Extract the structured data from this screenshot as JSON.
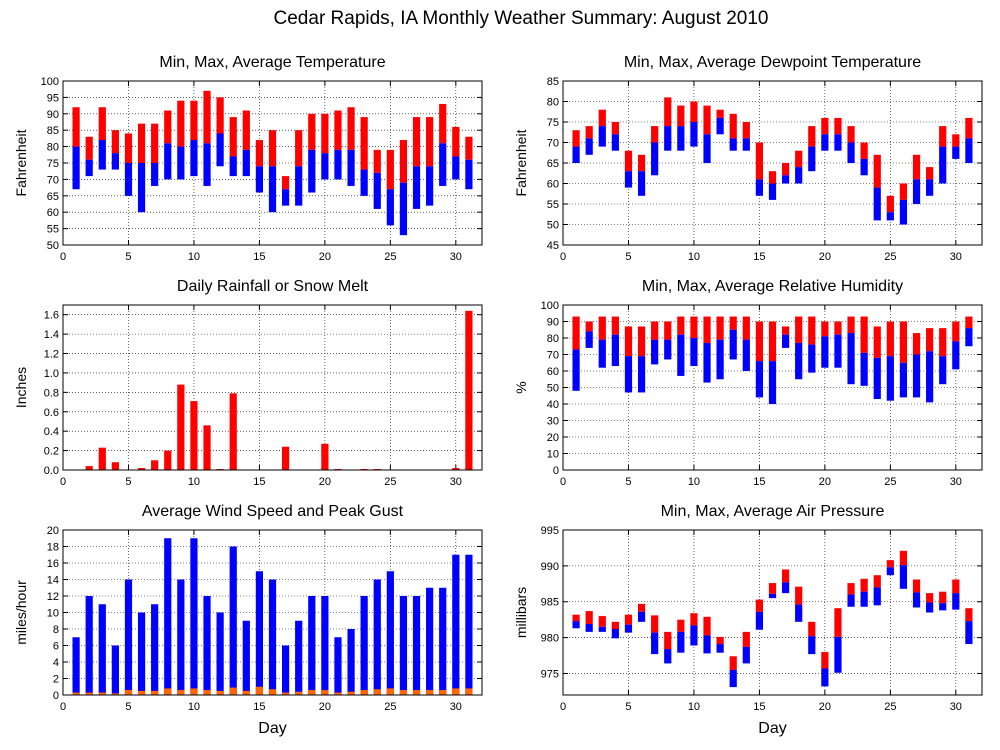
{
  "title": "Cedar Rapids, IA Monthly Weather Summary: August 2010",
  "colors": {
    "red": "#ff0000",
    "blue": "#0000ff",
    "orange": "#ff6600"
  },
  "chart_data": [
    {
      "id": "temp",
      "type": "bar",
      "title": "Min, Max, Average Temperature",
      "ylabel": "Fahrenheit",
      "xlabel": "",
      "ylim": [
        50,
        100
      ],
      "yticks": [
        50,
        55,
        60,
        65,
        70,
        75,
        80,
        85,
        90,
        95,
        100
      ],
      "xlim": [
        0,
        32
      ],
      "xticks": [
        0,
        5,
        10,
        15,
        20,
        25,
        30
      ],
      "grid": true,
      "x": [
        1,
        2,
        3,
        4,
        5,
        6,
        7,
        8,
        9,
        10,
        11,
        12,
        13,
        14,
        15,
        16,
        17,
        18,
        19,
        20,
        21,
        22,
        23,
        24,
        25,
        26,
        27,
        28,
        29,
        30,
        31
      ],
      "series": [
        {
          "key": "max",
          "values": [
            92,
            83,
            92,
            85,
            84,
            87,
            87,
            91,
            94,
            94,
            97,
            95,
            89,
            91,
            82,
            85,
            71,
            85,
            90,
            90,
            91,
            92,
            89,
            79,
            79,
            82,
            89,
            89,
            93,
            86,
            83
          ]
        },
        {
          "key": "avg",
          "values": [
            80,
            76,
            82,
            78,
            75,
            75,
            75,
            81,
            80,
            82,
            81,
            84,
            77,
            79,
            74,
            74,
            67,
            74,
            79,
            78,
            79,
            79,
            73,
            72,
            67,
            69,
            74,
            74,
            81,
            77,
            76
          ]
        },
        {
          "key": "min",
          "values": [
            67,
            71,
            73,
            73,
            65,
            60,
            68,
            70,
            70,
            71,
            68,
            74,
            71,
            71,
            66,
            60,
            62,
            62,
            66,
            70,
            70,
            68,
            65,
            61,
            56,
            53,
            61,
            62,
            68,
            70,
            67
          ]
        }
      ]
    },
    {
      "id": "dew",
      "type": "bar",
      "title": "Min, Max, Average Dewpoint Temperature",
      "ylabel": "Fahrenheit",
      "xlabel": "",
      "ylim": [
        45,
        85
      ],
      "yticks": [
        45,
        50,
        55,
        60,
        65,
        70,
        75,
        80,
        85
      ],
      "xlim": [
        0,
        32
      ],
      "xticks": [
        0,
        5,
        10,
        15,
        20,
        25,
        30
      ],
      "grid": true,
      "x": [
        1,
        2,
        3,
        4,
        5,
        6,
        7,
        8,
        9,
        10,
        11,
        12,
        13,
        14,
        15,
        16,
        17,
        18,
        19,
        20,
        21,
        22,
        23,
        24,
        25,
        26,
        27,
        28,
        29,
        30,
        31
      ],
      "series": [
        {
          "key": "max",
          "values": [
            73,
            74,
            78,
            75,
            68,
            67,
            74,
            81,
            79,
            80,
            79,
            78,
            77,
            75,
            70,
            63,
            65,
            68,
            74,
            76,
            76,
            74,
            70,
            67,
            57,
            60,
            67,
            64,
            74,
            72,
            76
          ]
        },
        {
          "key": "avg",
          "values": [
            69,
            71,
            74,
            72,
            63,
            63,
            70,
            74,
            74,
            75,
            72,
            76,
            71,
            71,
            61,
            60,
            62,
            64,
            69,
            72,
            72,
            70,
            66,
            59,
            53,
            56,
            61,
            61,
            69,
            69,
            71
          ]
        },
        {
          "key": "min",
          "values": [
            65,
            67,
            69,
            68,
            59,
            57,
            62,
            68,
            68,
            69,
            65,
            72,
            68,
            68,
            57,
            56,
            60,
            60,
            63,
            68,
            68,
            65,
            62,
            51,
            51,
            50,
            55,
            57,
            60,
            66,
            65
          ]
        }
      ]
    },
    {
      "id": "rain",
      "type": "bar",
      "title": "Daily Rainfall or Snow Melt",
      "ylabel": "Inches",
      "xlabel": "",
      "ylim": [
        0,
        1.7
      ],
      "yticks": [
        0,
        0.2,
        0.4,
        0.6,
        0.8,
        1.0,
        1.2,
        1.4,
        1.6
      ],
      "ytick_labels": [
        "0.0",
        "0.2",
        "0.4",
        "0.6",
        "0.8",
        "1.0",
        "1.2",
        "1.4",
        "1.6"
      ],
      "xlim": [
        0,
        32
      ],
      "xticks": [
        0,
        5,
        10,
        15,
        20,
        25,
        30
      ],
      "grid": true,
      "x": [
        1,
        2,
        3,
        4,
        5,
        6,
        7,
        8,
        9,
        10,
        11,
        12,
        13,
        14,
        15,
        16,
        17,
        18,
        19,
        20,
        21,
        22,
        23,
        24,
        25,
        26,
        27,
        28,
        29,
        30,
        31
      ],
      "series": [
        {
          "key": "rain",
          "values": [
            0,
            0.04,
            0.23,
            0.08,
            0,
            0.02,
            0.1,
            0.2,
            0.88,
            0.71,
            0.46,
            0.01,
            0.79,
            0,
            0,
            0,
            0.24,
            0,
            0,
            0.27,
            0.01,
            0,
            0.01,
            0.01,
            0,
            0,
            0,
            0,
            0,
            0.02,
            1.64
          ]
        }
      ]
    },
    {
      "id": "rh",
      "type": "bar",
      "title": "Min, Max, Average Relative Humidity",
      "ylabel": "%",
      "xlabel": "",
      "ylim": [
        0,
        100
      ],
      "yticks": [
        0,
        10,
        20,
        30,
        40,
        50,
        60,
        70,
        80,
        90,
        100
      ],
      "xlim": [
        0,
        32
      ],
      "xticks": [
        0,
        5,
        10,
        15,
        20,
        25,
        30
      ],
      "grid": true,
      "x": [
        1,
        2,
        3,
        4,
        5,
        6,
        7,
        8,
        9,
        10,
        11,
        12,
        13,
        14,
        15,
        16,
        17,
        18,
        19,
        20,
        21,
        22,
        23,
        24,
        25,
        26,
        27,
        28,
        29,
        30,
        31
      ],
      "series": [
        {
          "key": "max",
          "values": [
            93,
            90,
            93,
            93,
            87,
            87,
            90,
            90,
            93,
            93,
            93,
            93,
            93,
            93,
            90,
            90,
            87,
            93,
            93,
            90,
            90,
            93,
            93,
            87,
            90,
            90,
            83,
            86,
            86,
            90,
            93
          ]
        },
        {
          "key": "avg",
          "values": [
            73,
            84,
            79,
            82,
            69,
            69,
            79,
            79,
            82,
            80,
            77,
            79,
            85,
            79,
            66,
            66,
            82,
            77,
            76,
            81,
            82,
            83,
            71,
            68,
            69,
            65,
            70,
            72,
            69,
            78,
            86
          ]
        },
        {
          "key": "min",
          "values": [
            48,
            74,
            62,
            63,
            47,
            47,
            64,
            67,
            57,
            63,
            53,
            55,
            67,
            60,
            44,
            40,
            74,
            55,
            59,
            62,
            62,
            52,
            51,
            43,
            42,
            44,
            44,
            41,
            52,
            61,
            75
          ]
        }
      ]
    },
    {
      "id": "wind",
      "type": "bar",
      "title": "Average Wind Speed and Peak Gust",
      "ylabel": "miles/hour",
      "xlabel": "Day",
      "ylim": [
        0,
        20
      ],
      "yticks": [
        0,
        2,
        4,
        6,
        8,
        10,
        12,
        14,
        16,
        18,
        20
      ],
      "xlim": [
        0,
        32
      ],
      "xticks": [
        0,
        5,
        10,
        15,
        20,
        25,
        30
      ],
      "grid": true,
      "x": [
        1,
        2,
        3,
        4,
        5,
        6,
        7,
        8,
        9,
        10,
        11,
        12,
        13,
        14,
        15,
        16,
        17,
        18,
        19,
        20,
        21,
        22,
        23,
        24,
        25,
        26,
        27,
        28,
        29,
        30,
        31
      ],
      "series": [
        {
          "key": "gust",
          "values": [
            7,
            12,
            11,
            6,
            14,
            10,
            11,
            19,
            14,
            19,
            12,
            10,
            18,
            9,
            15,
            14,
            6,
            9,
            12,
            12,
            7,
            8,
            12,
            14,
            15,
            12,
            12,
            13,
            13,
            17,
            17
          ]
        },
        {
          "key": "avg",
          "values": [
            0.3,
            0.3,
            0.3,
            0.2,
            0.6,
            0.5,
            0.5,
            0.8,
            0.6,
            0.8,
            0.6,
            0.5,
            0.9,
            0.5,
            1.0,
            0.7,
            0.3,
            0.4,
            0.6,
            0.6,
            0.3,
            0.4,
            0.6,
            0.7,
            0.8,
            0.6,
            0.6,
            0.6,
            0.6,
            0.8,
            0.8
          ]
        }
      ]
    },
    {
      "id": "pres",
      "type": "bar",
      "title": "Min, Max, Average Air Pressure",
      "ylabel": "millibars",
      "xlabel": "Day",
      "ylim": [
        972,
        995
      ],
      "yticks": [
        975,
        980,
        985,
        990,
        995
      ],
      "xlim": [
        0,
        32
      ],
      "xticks": [
        0,
        5,
        10,
        15,
        20,
        25,
        30
      ],
      "grid": true,
      "x": [
        1,
        2,
        3,
        4,
        5,
        6,
        7,
        8,
        9,
        10,
        11,
        12,
        13,
        14,
        15,
        16,
        17,
        18,
        19,
        20,
        21,
        22,
        23,
        24,
        25,
        26,
        27,
        28,
        29,
        30,
        31
      ],
      "series": [
        {
          "key": "max",
          "values": [
            983.2,
            983.7,
            983,
            982.2,
            983.2,
            984.7,
            983.1,
            980.8,
            982.5,
            983.4,
            982.9,
            980.1,
            977.4,
            980.8,
            985.3,
            987.6,
            989.5,
            987.1,
            982.2,
            978,
            984.1,
            987.6,
            988.2,
            988.7,
            990.8,
            992.1,
            988.1,
            986.2,
            986.4,
            988.1,
            984.1
          ]
        },
        {
          "key": "avg",
          "values": [
            982.3,
            981.9,
            981.5,
            981.2,
            981.8,
            983.6,
            980.7,
            978.4,
            980.8,
            981.7,
            980.3,
            979.1,
            975.5,
            978.7,
            983.6,
            986.1,
            987.7,
            984.6,
            980.2,
            975.7,
            980.1,
            986,
            986.4,
            987,
            989.8,
            990.1,
            986.3,
            984.9,
            984.8,
            986.2,
            982.3
          ]
        },
        {
          "key": "min",
          "values": [
            981.3,
            980.8,
            980.8,
            979.9,
            980.7,
            982.2,
            977.7,
            976.4,
            977.9,
            978.9,
            977.8,
            977.9,
            973.1,
            976.4,
            981.1,
            985.5,
            986.2,
            982.2,
            977.7,
            973.2,
            975.1,
            984.3,
            984.3,
            984.5,
            988.7,
            986.8,
            984.2,
            983.5,
            983.8,
            983.9,
            979.1
          ]
        }
      ]
    }
  ]
}
